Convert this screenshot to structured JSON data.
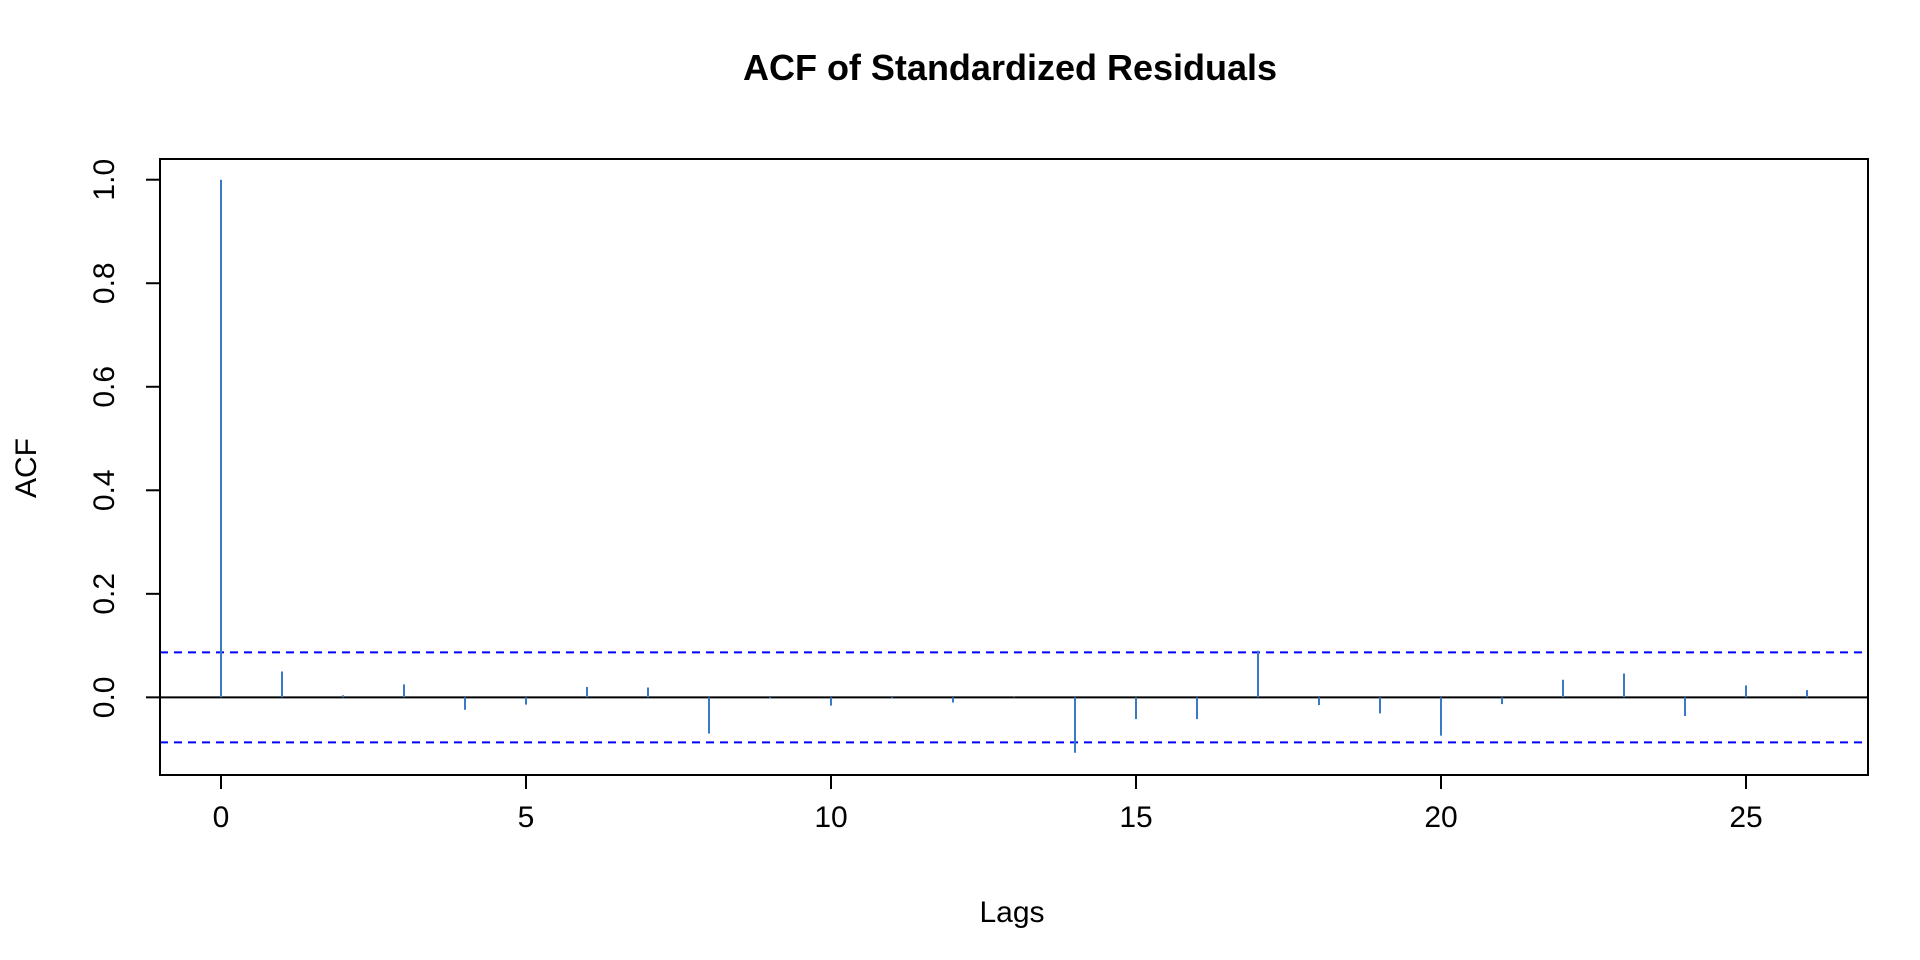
{
  "chart_data": {
    "type": "bar",
    "title": "ACF of Standardized Residuals",
    "xlabel": "Lags",
    "ylabel": "ACF",
    "xlim": [
      -1,
      27
    ],
    "ylim": [
      -0.15,
      1.04
    ],
    "x_ticks": [
      0,
      5,
      10,
      15,
      20,
      25
    ],
    "x_tick_labels": [
      "0",
      "5",
      "10",
      "15",
      "20",
      "25"
    ],
    "y_ticks": [
      0.0,
      0.2,
      0.4,
      0.6,
      0.8,
      1.0
    ],
    "y_tick_labels": [
      "0.0",
      "0.2",
      "0.4",
      "0.6",
      "0.8",
      "1.0"
    ],
    "lags": [
      0,
      1,
      2,
      3,
      4,
      5,
      6,
      7,
      8,
      9,
      10,
      11,
      12,
      13,
      14,
      15,
      16,
      17,
      18,
      19,
      20,
      21,
      22,
      23,
      24,
      25,
      26
    ],
    "values": [
      1.0,
      0.05,
      0.004,
      0.025,
      -0.024,
      -0.014,
      0.02,
      0.019,
      -0.07,
      -0.002,
      -0.016,
      -0.002,
      -0.01,
      0.001,
      -0.107,
      -0.042,
      -0.042,
      0.09,
      -0.015,
      -0.031,
      -0.074,
      -0.013,
      0.034,
      0.046,
      -0.036,
      0.023,
      0.014
    ],
    "confidence_bounds": [
      0.087,
      -0.087
    ],
    "colors": {
      "spikes": "#3a78c8",
      "confidence_line": "#0000ff",
      "zero_line": "#000000",
      "frame": "#000000"
    },
    "grid": false
  }
}
